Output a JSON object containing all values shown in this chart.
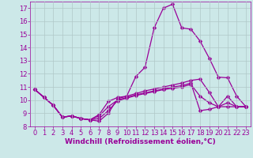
{
  "background_color": "#cce8e8",
  "grid_color": "#b0c8c8",
  "line_color": "#990099",
  "xlabel": "Windchill (Refroidissement éolien,°C)",
  "xlabel_fontsize": 6.5,
  "tick_fontsize": 6,
  "xlim": [
    -0.5,
    23.5
  ],
  "ylim": [
    8,
    17.5
  ],
  "yticks": [
    8,
    9,
    10,
    11,
    12,
    13,
    14,
    15,
    16,
    17
  ],
  "xticks": [
    0,
    1,
    2,
    3,
    4,
    5,
    6,
    7,
    8,
    9,
    10,
    11,
    12,
    13,
    14,
    15,
    16,
    17,
    18,
    19,
    20,
    21,
    22,
    23
  ],
  "line1_y": [
    10.8,
    10.2,
    9.6,
    8.7,
    8.8,
    8.6,
    8.5,
    8.4,
    9.0,
    10.1,
    10.3,
    11.8,
    12.5,
    15.5,
    17.0,
    17.3,
    15.5,
    15.4,
    14.5,
    13.2,
    11.75,
    11.7,
    10.3,
    9.5
  ],
  "line2_y": [
    10.8,
    10.2,
    9.6,
    8.7,
    8.8,
    8.6,
    8.5,
    8.9,
    9.9,
    10.2,
    10.3,
    10.5,
    10.7,
    10.85,
    11.0,
    11.15,
    11.3,
    11.5,
    11.6,
    10.6,
    9.5,
    10.3,
    9.5,
    9.5
  ],
  "line3_y": [
    10.8,
    10.2,
    9.6,
    8.7,
    8.8,
    8.6,
    8.5,
    8.8,
    9.5,
    10.0,
    10.2,
    10.4,
    10.55,
    10.7,
    10.85,
    11.0,
    11.1,
    11.3,
    9.2,
    9.3,
    9.5,
    9.5,
    9.5,
    9.5
  ],
  "line4_y": [
    10.8,
    10.2,
    9.6,
    8.7,
    8.8,
    8.6,
    8.5,
    8.6,
    9.2,
    9.95,
    10.15,
    10.35,
    10.5,
    10.65,
    10.8,
    10.9,
    11.0,
    11.2,
    10.3,
    9.8,
    9.5,
    9.8,
    9.5,
    9.5
  ]
}
